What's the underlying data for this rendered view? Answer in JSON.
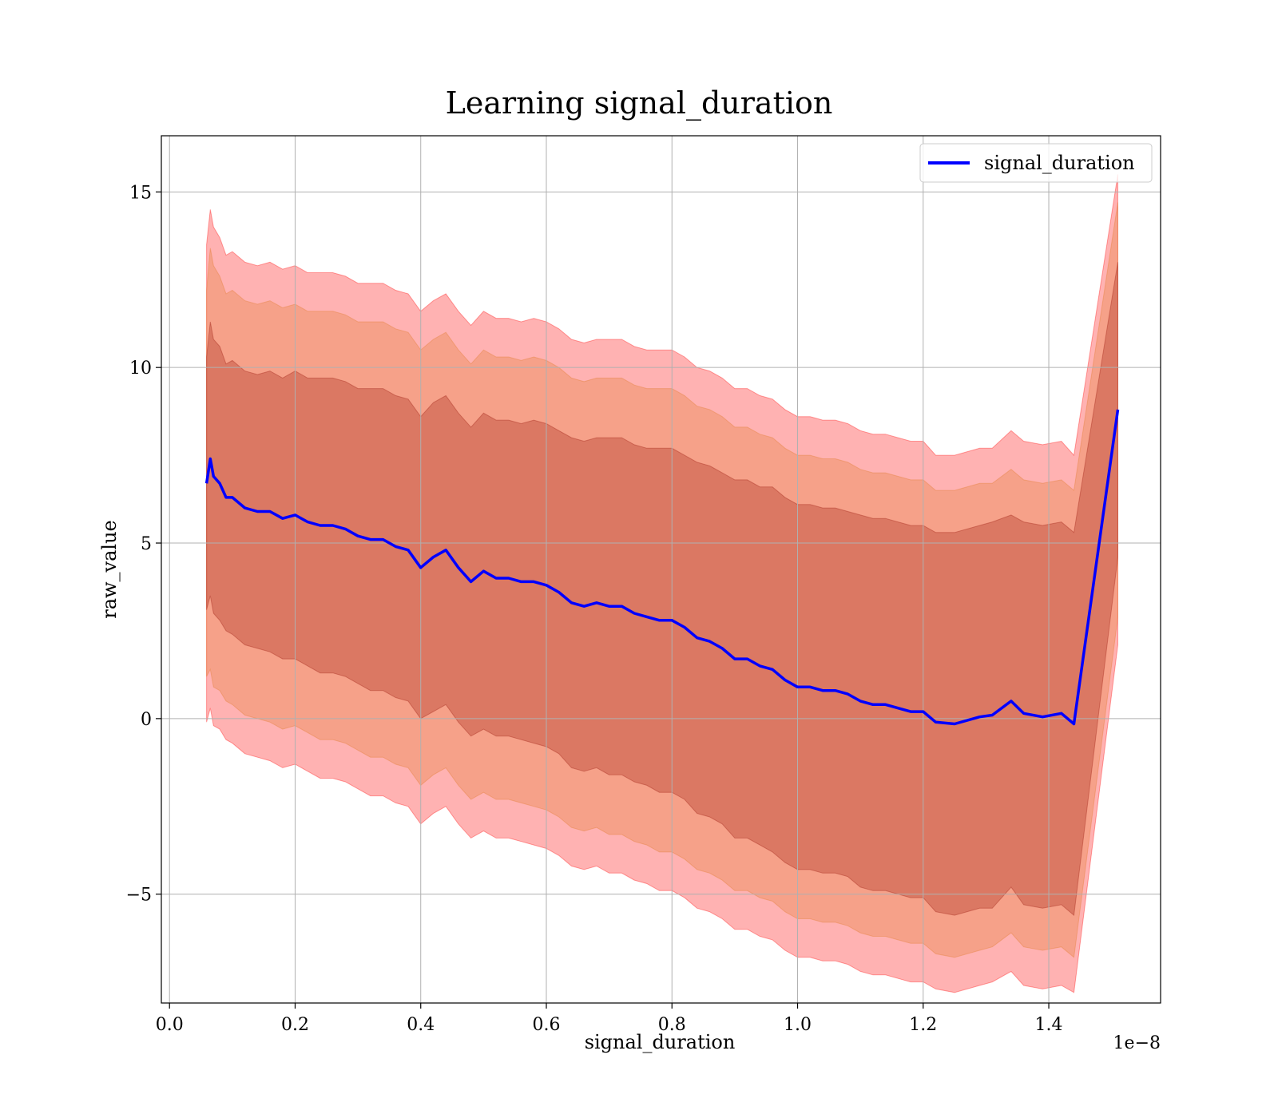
{
  "chart_data": {
    "type": "line",
    "title": "Learning signal_duration",
    "xlabel": "signal_duration",
    "ylabel": "raw_value",
    "x_offset_text": "1e−8",
    "xlim": [
      -0.013,
      1.578
    ],
    "ylim": [
      -8.1,
      16.6
    ],
    "xticks": [
      0.0,
      0.2,
      0.4,
      0.6,
      0.8,
      1.0,
      1.2,
      1.4
    ],
    "xtick_labels": [
      "0.0",
      "0.2",
      "0.4",
      "0.6",
      "0.8",
      "1.0",
      "1.2",
      "1.4"
    ],
    "yticks": [
      -5,
      0,
      5,
      10,
      15
    ],
    "ytick_labels": [
      "−5",
      "0",
      "5",
      "10",
      "15"
    ],
    "grid": true,
    "legend_position": "top-right",
    "series": [
      {
        "name": "signal_duration",
        "color": "#0000ff",
        "x": [
          0.059,
          0.065,
          0.07,
          0.08,
          0.09,
          0.1,
          0.12,
          0.14,
          0.16,
          0.18,
          0.2,
          0.22,
          0.24,
          0.26,
          0.28,
          0.3,
          0.32,
          0.34,
          0.36,
          0.38,
          0.4,
          0.42,
          0.44,
          0.46,
          0.48,
          0.5,
          0.52,
          0.54,
          0.56,
          0.58,
          0.6,
          0.62,
          0.64,
          0.66,
          0.68,
          0.7,
          0.72,
          0.74,
          0.76,
          0.78,
          0.8,
          0.82,
          0.84,
          0.86,
          0.88,
          0.9,
          0.92,
          0.94,
          0.96,
          0.98,
          1.0,
          1.02,
          1.04,
          1.06,
          1.08,
          1.1,
          1.12,
          1.14,
          1.16,
          1.18,
          1.2,
          1.22,
          1.25,
          1.29,
          1.31,
          1.34,
          1.36,
          1.39,
          1.42,
          1.44,
          1.51
        ],
        "values": [
          6.7,
          7.4,
          6.9,
          6.7,
          6.3,
          6.3,
          6.0,
          5.9,
          5.9,
          5.7,
          5.8,
          5.6,
          5.5,
          5.5,
          5.4,
          5.2,
          5.1,
          5.1,
          4.9,
          4.8,
          4.3,
          4.6,
          4.8,
          4.3,
          3.9,
          4.2,
          4.0,
          4.0,
          3.9,
          3.9,
          3.8,
          3.6,
          3.3,
          3.2,
          3.3,
          3.2,
          3.2,
          3.0,
          2.9,
          2.8,
          2.8,
          2.6,
          2.3,
          2.2,
          2.0,
          1.7,
          1.7,
          1.5,
          1.4,
          1.1,
          0.9,
          0.9,
          0.8,
          0.8,
          0.7,
          0.5,
          0.4,
          0.4,
          0.3,
          0.2,
          0.2,
          -0.1,
          -0.15,
          0.05,
          0.1,
          0.5,
          0.15,
          0.05,
          0.15,
          -0.15,
          8.8
        ],
        "bands": [
          {
            "color": "#9b1b0e",
            "lower": [
              3.1,
              3.5,
              3.0,
              2.8,
              2.5,
              2.4,
              2.1,
              2.0,
              1.9,
              1.7,
              1.7,
              1.5,
              1.3,
              1.3,
              1.2,
              1.0,
              0.8,
              0.8,
              0.6,
              0.5,
              0.0,
              0.2,
              0.4,
              -0.1,
              -0.5,
              -0.3,
              -0.5,
              -0.5,
              -0.6,
              -0.7,
              -0.8,
              -1.0,
              -1.4,
              -1.5,
              -1.4,
              -1.6,
              -1.6,
              -1.8,
              -1.9,
              -2.1,
              -2.1,
              -2.3,
              -2.7,
              -2.8,
              -3.0,
              -3.4,
              -3.4,
              -3.6,
              -3.8,
              -4.1,
              -4.3,
              -4.3,
              -4.4,
              -4.4,
              -4.5,
              -4.8,
              -4.9,
              -4.9,
              -5.0,
              -5.1,
              -5.1,
              -5.5,
              -5.6,
              -5.4,
              -5.4,
              -4.8,
              -5.3,
              -5.4,
              -5.3,
              -5.6,
              4.6
            ],
            "upper": [
              10.3,
              11.3,
              10.8,
              10.6,
              10.1,
              10.2,
              9.9,
              9.8,
              9.9,
              9.7,
              9.9,
              9.7,
              9.7,
              9.7,
              9.6,
              9.4,
              9.4,
              9.4,
              9.2,
              9.1,
              8.6,
              9.0,
              9.2,
              8.7,
              8.3,
              8.7,
              8.5,
              8.5,
              8.4,
              8.5,
              8.4,
              8.2,
              8.0,
              7.9,
              8.0,
              8.0,
              8.0,
              7.8,
              7.7,
              7.7,
              7.7,
              7.5,
              7.3,
              7.2,
              7.0,
              6.8,
              6.8,
              6.6,
              6.6,
              6.3,
              6.1,
              6.1,
              6.0,
              6.0,
              5.9,
              5.8,
              5.7,
              5.7,
              5.6,
              5.5,
              5.5,
              5.3,
              5.3,
              5.5,
              5.6,
              5.8,
              5.6,
              5.5,
              5.6,
              5.3,
              13.0
            ]
          },
          {
            "color": "#e07a2a",
            "lower": [
              1.2,
              1.4,
              0.9,
              0.8,
              0.5,
              0.4,
              0.1,
              0.0,
              -0.1,
              -0.3,
              -0.2,
              -0.4,
              -0.6,
              -0.6,
              -0.7,
              -0.9,
              -1.1,
              -1.1,
              -1.3,
              -1.4,
              -1.9,
              -1.6,
              -1.4,
              -1.9,
              -2.3,
              -2.1,
              -2.3,
              -2.3,
              -2.4,
              -2.5,
              -2.6,
              -2.8,
              -3.1,
              -3.2,
              -3.1,
              -3.3,
              -3.3,
              -3.5,
              -3.6,
              -3.8,
              -3.8,
              -4.0,
              -4.3,
              -4.4,
              -4.6,
              -4.9,
              -4.9,
              -5.1,
              -5.2,
              -5.5,
              -5.7,
              -5.7,
              -5.8,
              -5.8,
              -5.9,
              -6.1,
              -6.2,
              -6.2,
              -6.3,
              -6.4,
              -6.4,
              -6.7,
              -6.8,
              -6.6,
              -6.5,
              -6.1,
              -6.5,
              -6.6,
              -6.5,
              -6.8,
              2.9
            ]
          },
          {
            "color": "#ff0000",
            "lower": [
              -0.1,
              0.3,
              -0.2,
              -0.3,
              -0.6,
              -0.7,
              -1.0,
              -1.1,
              -1.2,
              -1.4,
              -1.3,
              -1.5,
              -1.7,
              -1.7,
              -1.8,
              -2.0,
              -2.2,
              -2.2,
              -2.4,
              -2.5,
              -3.0,
              -2.7,
              -2.5,
              -3.0,
              -3.4,
              -3.2,
              -3.4,
              -3.4,
              -3.5,
              -3.6,
              -3.7,
              -3.9,
              -4.2,
              -4.3,
              -4.2,
              -4.4,
              -4.4,
              -4.6,
              -4.7,
              -4.9,
              -4.9,
              -5.1,
              -5.4,
              -5.5,
              -5.7,
              -6.0,
              -6.0,
              -6.2,
              -6.3,
              -6.6,
              -6.8,
              -6.8,
              -6.9,
              -6.9,
              -7.0,
              -7.2,
              -7.3,
              -7.3,
              -7.4,
              -7.5,
              -7.5,
              -7.7,
              -7.8,
              -7.6,
              -7.5,
              -7.2,
              -7.6,
              -7.7,
              -7.6,
              -7.8,
              2.1
            ]
          }
        ]
      }
    ]
  }
}
